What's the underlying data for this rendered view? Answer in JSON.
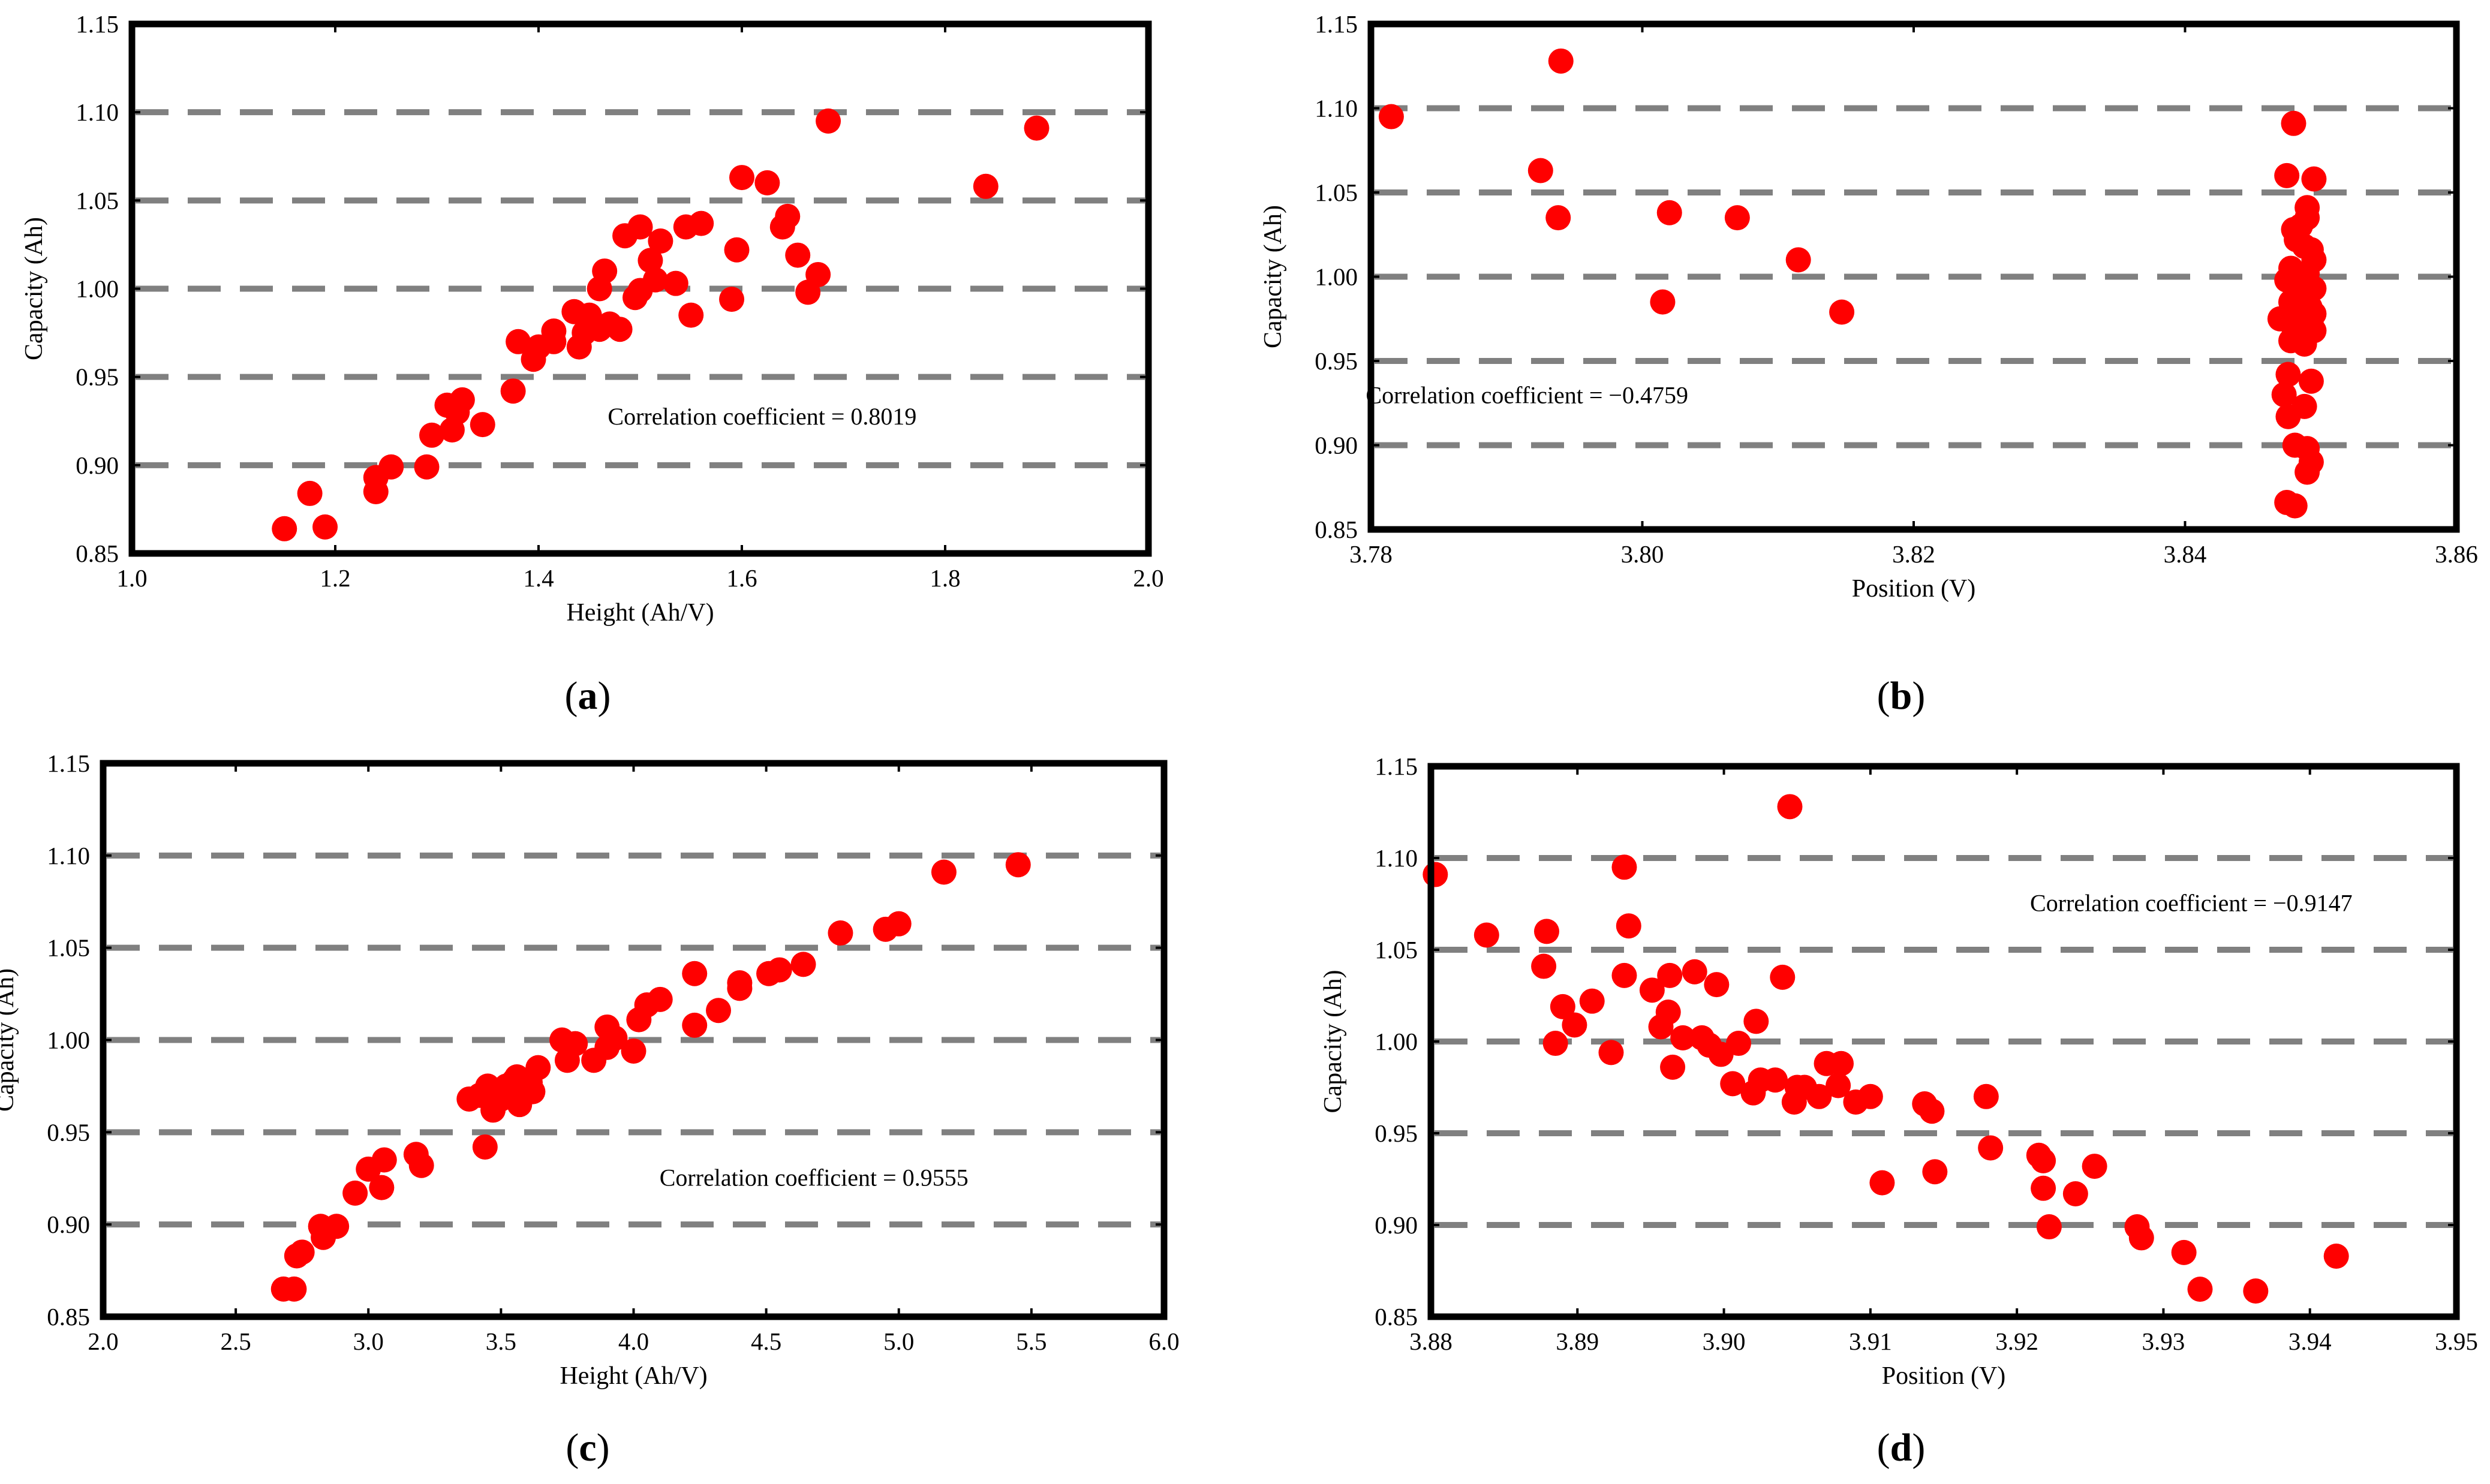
{
  "colors": {
    "points": "#ff0000",
    "grid": "#808080",
    "frame": "#000000"
  },
  "chart_data": [
    {
      "type": "scatter",
      "caption": "a",
      "xlabel": "Height (Ah/V)",
      "ylabel": "Capacity (Ah)",
      "xlim": [
        1.0,
        2.0
      ],
      "ylim": [
        0.85,
        1.15
      ],
      "xticks": [
        1.0,
        1.2,
        1.4,
        1.6,
        1.8,
        2.0
      ],
      "xtick_labels": [
        "1.0",
        "1.2",
        "1.4",
        "1.6",
        "1.8",
        "2.0"
      ],
      "yticks": [
        0.85,
        0.9,
        0.95,
        1.0,
        1.05,
        1.1,
        1.15
      ],
      "ytick_labels": [
        "0.85",
        "0.90",
        "0.95",
        "1.00",
        "1.05",
        "1.10",
        "1.15"
      ],
      "gridlines_y": [
        0.9,
        0.95,
        1.0,
        1.05,
        1.1
      ],
      "annotation": "Correlation coefficient = 0.8019",
      "annotation_pos": [
        1.62,
        0.923
      ],
      "points": [
        [
          1.15,
          0.864
        ],
        [
          1.175,
          0.884
        ],
        [
          1.19,
          0.865
        ],
        [
          1.24,
          0.893
        ],
        [
          1.24,
          0.885
        ],
        [
          1.255,
          0.899
        ],
        [
          1.29,
          0.899
        ],
        [
          1.295,
          0.917
        ],
        [
          1.31,
          0.934
        ],
        [
          1.315,
          0.92
        ],
        [
          1.32,
          0.93
        ],
        [
          1.325,
          0.937
        ],
        [
          1.345,
          0.923
        ],
        [
          1.375,
          0.942
        ],
        [
          1.38,
          0.97
        ],
        [
          1.395,
          0.96
        ],
        [
          1.4,
          0.967
        ],
        [
          1.415,
          0.976
        ],
        [
          1.415,
          0.97
        ],
        [
          1.435,
          0.987
        ],
        [
          1.44,
          0.967
        ],
        [
          1.445,
          0.975
        ],
        [
          1.45,
          0.985
        ],
        [
          1.46,
          0.977
        ],
        [
          1.46,
          1.0
        ],
        [
          1.465,
          1.01
        ],
        [
          1.47,
          0.98
        ],
        [
          1.48,
          0.977
        ],
        [
          1.485,
          1.03
        ],
        [
          1.495,
          0.995
        ],
        [
          1.5,
          1.035
        ],
        [
          1.5,
          0.999
        ],
        [
          1.51,
          1.016
        ],
        [
          1.515,
          1.005
        ],
        [
          1.52,
          1.027
        ],
        [
          1.535,
          1.003
        ],
        [
          1.545,
          1.035
        ],
        [
          1.55,
          0.985
        ],
        [
          1.56,
          1.037
        ],
        [
          1.59,
          0.994
        ],
        [
          1.595,
          1.022
        ],
        [
          1.6,
          1.063
        ],
        [
          1.625,
          1.06
        ],
        [
          1.64,
          1.035
        ],
        [
          1.645,
          1.041
        ],
        [
          1.655,
          1.019
        ],
        [
          1.665,
          0.998
        ],
        [
          1.675,
          1.008
        ],
        [
          1.685,
          1.095
        ],
        [
          1.84,
          1.058
        ],
        [
          1.89,
          1.091
        ]
      ]
    },
    {
      "type": "scatter",
      "caption": "b",
      "xlabel": "Position (V)",
      "ylabel": "Capacity (Ah)",
      "xlim": [
        3.78,
        3.86
      ],
      "ylim": [
        0.85,
        1.15
      ],
      "xticks": [
        3.78,
        3.8,
        3.82,
        3.84,
        3.86
      ],
      "xtick_labels": [
        "3.78",
        "3.80",
        "3.82",
        "3.84",
        "3.86"
      ],
      "yticks": [
        0.85,
        0.9,
        0.95,
        1.0,
        1.05,
        1.1,
        1.15
      ],
      "ytick_labels": [
        "0.85",
        "0.90",
        "0.95",
        "1.00",
        "1.05",
        "1.10",
        "1.15"
      ],
      "gridlines_y": [
        0.9,
        0.95,
        1.0,
        1.05,
        1.1
      ],
      "annotation": "Correlation coefficient = −0.4759",
      "annotation_pos": [
        3.7915,
        0.925
      ],
      "points": [
        [
          3.7815,
          1.095
        ],
        [
          3.7925,
          1.063
        ],
        [
          3.794,
          1.128
        ],
        [
          3.7938,
          1.035
        ],
        [
          3.8015,
          0.985
        ],
        [
          3.802,
          1.038
        ],
        [
          3.807,
          1.035
        ],
        [
          3.8115,
          1.01
        ],
        [
          3.8147,
          0.979
        ],
        [
          3.848,
          1.091
        ],
        [
          3.8475,
          1.06
        ],
        [
          3.8495,
          1.058
        ],
        [
          3.849,
          1.041
        ],
        [
          3.8485,
          1.03
        ],
        [
          3.849,
          1.035
        ],
        [
          3.848,
          1.028
        ],
        [
          3.8482,
          1.022
        ],
        [
          3.8488,
          1.018
        ],
        [
          3.8493,
          1.016
        ],
        [
          3.8495,
          1.01
        ],
        [
          3.8478,
          1.005
        ],
        [
          3.849,
          1.002
        ],
        [
          3.8485,
          0.999
        ],
        [
          3.8475,
          0.998
        ],
        [
          3.848,
          0.995
        ],
        [
          3.8495,
          0.993
        ],
        [
          3.849,
          0.988
        ],
        [
          3.8485,
          0.987
        ],
        [
          3.8478,
          0.985
        ],
        [
          3.8492,
          0.982
        ],
        [
          3.8482,
          0.98
        ],
        [
          3.8495,
          0.978
        ],
        [
          3.847,
          0.975
        ],
        [
          3.8488,
          0.977
        ],
        [
          3.8493,
          0.972
        ],
        [
          3.848,
          0.97
        ],
        [
          3.8495,
          0.968
        ],
        [
          3.8485,
          0.965
        ],
        [
          3.8478,
          0.962
        ],
        [
          3.8488,
          0.96
        ],
        [
          3.8476,
          0.942
        ],
        [
          3.8493,
          0.938
        ],
        [
          3.8473,
          0.93
        ],
        [
          3.8488,
          0.923
        ],
        [
          3.8476,
          0.917
        ],
        [
          3.8481,
          0.9
        ],
        [
          3.849,
          0.898
        ],
        [
          3.8493,
          0.89
        ],
        [
          3.849,
          0.884
        ],
        [
          3.8475,
          0.866
        ],
        [
          3.8481,
          0.864
        ]
      ]
    },
    {
      "type": "scatter",
      "caption": "c",
      "xlabel": "Height (Ah/V)",
      "ylabel": "Capacity (Ah)",
      "xlim": [
        2.0,
        6.0
      ],
      "ylim": [
        0.85,
        1.15
      ],
      "xticks": [
        2.0,
        2.5,
        3.0,
        3.5,
        4.0,
        4.5,
        5.0,
        5.5,
        6.0
      ],
      "xtick_labels": [
        "2.0",
        "2.5",
        "3.0",
        "3.5",
        "4.0",
        "4.5",
        "5.0",
        "5.5",
        "6.0"
      ],
      "yticks": [
        0.85,
        0.9,
        0.95,
        1.0,
        1.05,
        1.1,
        1.15
      ],
      "ytick_labels": [
        "0.85",
        "0.90",
        "0.95",
        "1.00",
        "1.05",
        "1.10",
        "1.15"
      ],
      "gridlines_y": [
        0.9,
        0.95,
        1.0,
        1.05,
        1.1
      ],
      "annotation": "Correlation coefficient = 0.9555",
      "annotation_pos": [
        4.68,
        0.921
      ],
      "points": [
        [
          2.68,
          0.865
        ],
        [
          2.72,
          0.865
        ],
        [
          2.73,
          0.883
        ],
        [
          2.75,
          0.885
        ],
        [
          2.82,
          0.899
        ],
        [
          2.83,
          0.893
        ],
        [
          2.88,
          0.899
        ],
        [
          2.95,
          0.917
        ],
        [
          3.0,
          0.93
        ],
        [
          3.05,
          0.92
        ],
        [
          3.06,
          0.935
        ],
        [
          3.18,
          0.938
        ],
        [
          3.2,
          0.932
        ],
        [
          3.38,
          0.968
        ],
        [
          3.42,
          0.97
        ],
        [
          3.44,
          0.942
        ],
        [
          3.45,
          0.975
        ],
        [
          3.47,
          0.962
        ],
        [
          3.48,
          0.97
        ],
        [
          3.5,
          0.968
        ],
        [
          3.52,
          0.975
        ],
        [
          3.53,
          0.972
        ],
        [
          3.55,
          0.978
        ],
        [
          3.56,
          0.98
        ],
        [
          3.57,
          0.965
        ],
        [
          3.58,
          0.976
        ],
        [
          3.61,
          0.977
        ],
        [
          3.62,
          0.972
        ],
        [
          3.64,
          0.985
        ],
        [
          3.73,
          1.0
        ],
        [
          3.75,
          0.989
        ],
        [
          3.78,
          0.998
        ],
        [
          3.85,
          0.989
        ],
        [
          3.9,
          1.007
        ],
        [
          3.9,
          0.996
        ],
        [
          3.93,
          1.001
        ],
        [
          4.0,
          0.994
        ],
        [
          4.02,
          1.011
        ],
        [
          4.05,
          1.019
        ],
        [
          4.1,
          1.022
        ],
        [
          4.23,
          1.036
        ],
        [
          4.23,
          1.008
        ],
        [
          4.32,
          1.016
        ],
        [
          4.4,
          1.028
        ],
        [
          4.4,
          1.031
        ],
        [
          4.51,
          1.036
        ],
        [
          4.55,
          1.038
        ],
        [
          4.64,
          1.041
        ],
        [
          4.78,
          1.058
        ],
        [
          4.95,
          1.06
        ],
        [
          5.0,
          1.063
        ],
        [
          5.17,
          1.091
        ],
        [
          5.45,
          1.095
        ]
      ]
    },
    {
      "type": "scatter",
      "caption": "d",
      "xlabel": "Position (V)",
      "ylabel": "Capacity (Ah)",
      "xlim": [
        3.88,
        3.95
      ],
      "ylim": [
        0.85,
        1.15
      ],
      "xticks": [
        3.88,
        3.89,
        3.9,
        3.91,
        3.92,
        3.93,
        3.94,
        3.95
      ],
      "xtick_labels": [
        "3.88",
        "3.89",
        "3.90",
        "3.91",
        "3.92",
        "3.93",
        "3.94",
        "3.95"
      ],
      "yticks": [
        0.85,
        0.9,
        0.95,
        1.0,
        1.05,
        1.1,
        1.15
      ],
      "ytick_labels": [
        "0.85",
        "0.90",
        "0.95",
        "1.00",
        "1.05",
        "1.10",
        "1.15"
      ],
      "gridlines_y": [
        0.9,
        0.95,
        1.0,
        1.05,
        1.1
      ],
      "annotation": "Correlation coefficient = −0.9147",
      "annotation_pos": [
        3.9319,
        1.071
      ],
      "points": [
        [
          3.8803,
          1.091
        ],
        [
          3.8838,
          1.058
        ],
        [
          3.8877,
          1.041
        ],
        [
          3.8879,
          1.06
        ],
        [
          3.8885,
          0.999
        ],
        [
          3.889,
          1.019
        ],
        [
          3.8898,
          1.009
        ],
        [
          3.891,
          1.022
        ],
        [
          3.8923,
          0.994
        ],
        [
          3.8932,
          1.095
        ],
        [
          3.8932,
          1.036
        ],
        [
          3.8935,
          1.063
        ],
        [
          3.8951,
          1.028
        ],
        [
          3.8957,
          1.008
        ],
        [
          3.8962,
          1.016
        ],
        [
          3.8963,
          1.036
        ],
        [
          3.8965,
          0.986
        ],
        [
          3.8972,
          1.002
        ],
        [
          3.898,
          1.038
        ],
        [
          3.8985,
          1.002
        ],
        [
          3.899,
          0.998
        ],
        [
          3.8995,
          1.031
        ],
        [
          3.8998,
          0.993
        ],
        [
          3.9006,
          0.977
        ],
        [
          3.901,
          0.999
        ],
        [
          3.902,
          0.972
        ],
        [
          3.9022,
          1.011
        ],
        [
          3.9025,
          0.979
        ],
        [
          3.9035,
          0.979
        ],
        [
          3.904,
          1.035
        ],
        [
          3.9045,
          1.128
        ],
        [
          3.9048,
          0.967
        ],
        [
          3.905,
          0.975
        ],
        [
          3.9055,
          0.975
        ],
        [
          3.9065,
          0.97
        ],
        [
          3.907,
          0.988
        ],
        [
          3.9078,
          0.976
        ],
        [
          3.908,
          0.988
        ],
        [
          3.909,
          0.967
        ],
        [
          3.91,
          0.97
        ],
        [
          3.9108,
          0.923
        ],
        [
          3.9137,
          0.966
        ],
        [
          3.9142,
          0.962
        ],
        [
          3.9144,
          0.929
        ],
        [
          3.9179,
          0.97
        ],
        [
          3.9182,
          0.942
        ],
        [
          3.9215,
          0.938
        ],
        [
          3.9218,
          0.92
        ],
        [
          3.9218,
          0.935
        ],
        [
          3.9222,
          0.899
        ],
        [
          3.924,
          0.917
        ],
        [
          3.9253,
          0.932
        ],
        [
          3.9282,
          0.899
        ],
        [
          3.9285,
          0.893
        ],
        [
          3.9314,
          0.885
        ],
        [
          3.9325,
          0.865
        ],
        [
          3.9363,
          0.864
        ],
        [
          3.9418,
          0.883
        ]
      ]
    }
  ]
}
